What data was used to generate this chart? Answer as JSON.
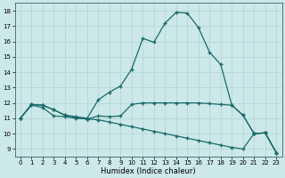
{
  "xlabel": "Humidex (Indice chaleur)",
  "xlim": [
    -0.5,
    23.5
  ],
  "ylim": [
    8.5,
    18.5
  ],
  "yticks": [
    9,
    10,
    11,
    12,
    13,
    14,
    15,
    16,
    17,
    18
  ],
  "xticks": [
    0,
    1,
    2,
    3,
    4,
    5,
    6,
    7,
    8,
    9,
    10,
    11,
    12,
    13,
    14,
    15,
    16,
    17,
    18,
    19,
    20,
    21,
    22,
    23
  ],
  "bg_color": "#cce8e8",
  "line_color": "#1a6b6b",
  "grid_color": "#b0d4d4",
  "series1": [
    [
      0,
      11.0
    ],
    [
      1,
      11.9
    ],
    [
      2,
      11.85
    ],
    [
      3,
      11.55
    ],
    [
      4,
      11.2
    ],
    [
      5,
      11.1
    ],
    [
      6,
      11.0
    ],
    [
      7,
      12.2
    ],
    [
      8,
      12.7
    ],
    [
      9,
      13.1
    ],
    [
      10,
      14.2
    ],
    [
      11,
      16.2
    ],
    [
      12,
      15.95
    ],
    [
      13,
      17.2
    ],
    [
      14,
      17.9
    ],
    [
      15,
      17.85
    ],
    [
      16,
      16.9
    ],
    [
      17,
      15.3
    ],
    [
      18,
      14.5
    ],
    [
      19,
      11.85
    ],
    [
      20,
      11.2
    ],
    [
      21,
      10.0
    ],
    [
      22,
      10.05
    ],
    [
      23,
      8.75
    ]
  ],
  "series2": [
    [
      0,
      11.0
    ],
    [
      1,
      11.9
    ],
    [
      2,
      11.85
    ],
    [
      3,
      11.55
    ],
    [
      4,
      11.2
    ],
    [
      5,
      11.05
    ],
    [
      6,
      10.95
    ],
    [
      7,
      11.15
    ],
    [
      8,
      11.1
    ],
    [
      9,
      11.15
    ],
    [
      10,
      11.9
    ],
    [
      11,
      12.0
    ],
    [
      12,
      12.0
    ],
    [
      13,
      12.0
    ],
    [
      14,
      12.0
    ],
    [
      15,
      12.0
    ],
    [
      16,
      12.0
    ],
    [
      17,
      11.95
    ],
    [
      18,
      11.9
    ],
    [
      19,
      11.85
    ],
    [
      20,
      11.2
    ],
    [
      21,
      10.0
    ],
    [
      22,
      10.05
    ],
    [
      23,
      8.75
    ]
  ],
  "series3": [
    [
      0,
      11.0
    ],
    [
      1,
      11.85
    ],
    [
      2,
      11.7
    ],
    [
      3,
      11.15
    ],
    [
      4,
      11.1
    ],
    [
      5,
      11.0
    ],
    [
      6,
      10.95
    ],
    [
      7,
      10.9
    ],
    [
      8,
      10.75
    ],
    [
      9,
      10.6
    ],
    [
      10,
      10.45
    ],
    [
      11,
      10.3
    ],
    [
      12,
      10.15
    ],
    [
      13,
      10.0
    ],
    [
      14,
      9.85
    ],
    [
      15,
      9.7
    ],
    [
      16,
      9.55
    ],
    [
      17,
      9.4
    ],
    [
      18,
      9.25
    ],
    [
      19,
      9.1
    ],
    [
      20,
      9.0
    ],
    [
      21,
      10.0
    ],
    [
      22,
      10.05
    ],
    [
      23,
      8.75
    ]
  ],
  "series4": [
    [
      0,
      11.0
    ],
    [
      1,
      11.85
    ],
    [
      2,
      11.7
    ],
    [
      3,
      11.15
    ],
    [
      4,
      11.1
    ],
    [
      5,
      11.0
    ],
    [
      6,
      10.95
    ],
    [
      7,
      10.9
    ],
    [
      19,
      11.85
    ],
    [
      20,
      11.2
    ],
    [
      21,
      10.0
    ],
    [
      22,
      10.05
    ],
    [
      23,
      8.75
    ]
  ]
}
